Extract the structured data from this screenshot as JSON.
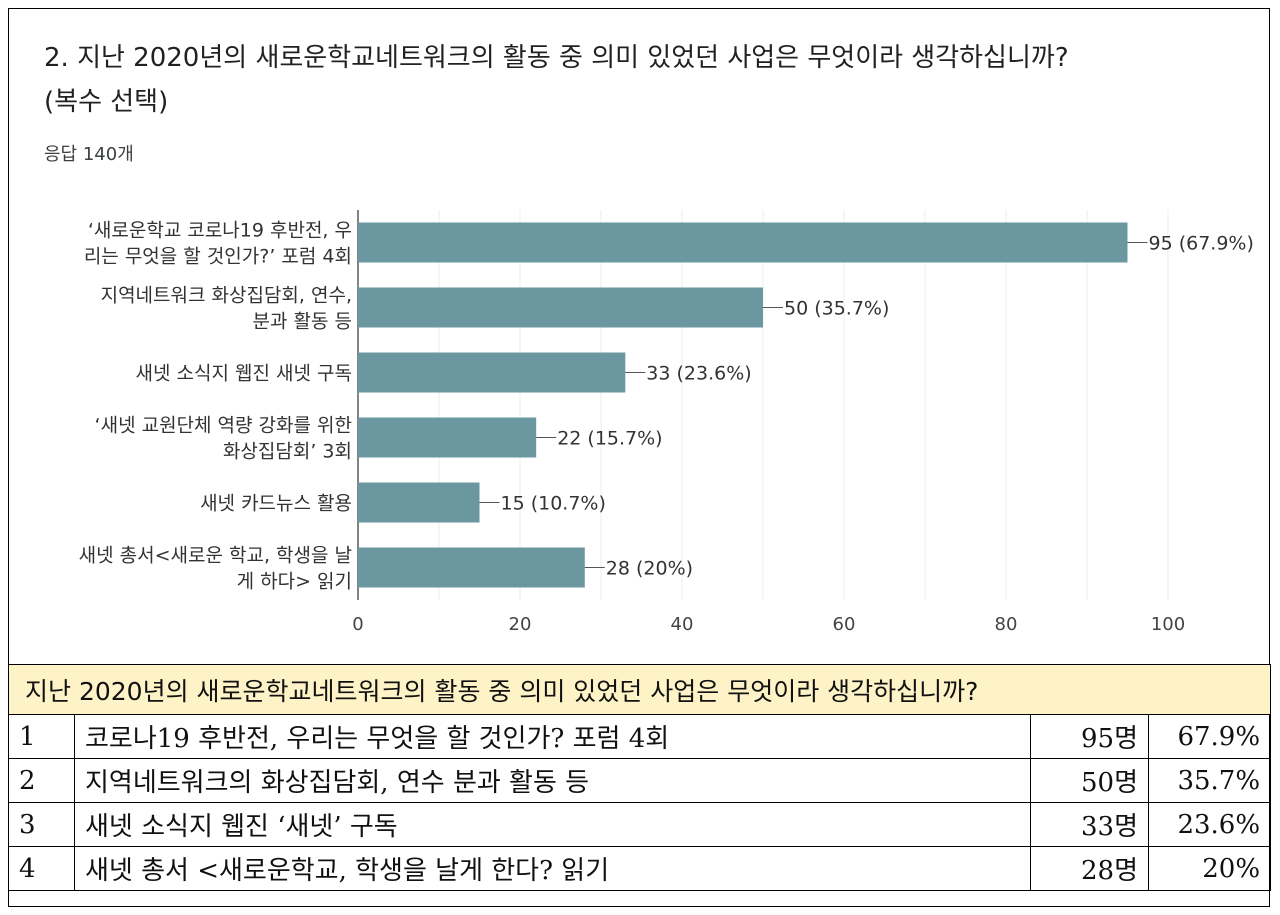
{
  "question": {
    "line1": "2. 지난 2020년의 새로운학교네트워크의 활동 중 의미 있었던 사업은 무엇이라 생각하십니까?",
    "line2": "(복수 선택)",
    "responses": "응답 140개"
  },
  "chart_data": {
    "type": "bar",
    "orientation": "horizontal",
    "categories": [
      [
        "‘새로운학교 코로나19 후반전, 우",
        "리는 무엇을 할 것인가?’ 포럼 4회"
      ],
      [
        "지역네트워크 화상집담회, 연수,",
        "분과 활동 등"
      ],
      [
        "새넷 소식지 웹진 새넷 구독"
      ],
      [
        "‘새넷 교원단체 역량 강화를 위한",
        "화상집담회’ 3회"
      ],
      [
        "새넷 카드뉴스 활용"
      ],
      [
        "새넷 총서<새로운 학교, 학생을 날",
        "게 하다> 읽기"
      ]
    ],
    "values": [
      95,
      50,
      33,
      22,
      15,
      28
    ],
    "data_labels": [
      "95 (67.9%)",
      "50 (35.7%)",
      "33 (23.6%)",
      "22 (15.7%)",
      "15 (10.7%)",
      "28 (20%)"
    ],
    "xlim": [
      0,
      100
    ],
    "xticks": [
      0,
      20,
      40,
      60,
      80,
      100
    ],
    "bar_color": "#6a97a0",
    "grid": true
  },
  "table": {
    "header": "지난 2020년의 새로운학교네트워크의 활동 중 의미 있었던 사업은 무엇이라 생각하십니까?",
    "rows": [
      {
        "no": "1",
        "item": "코로나19 후반전, 우리는 무엇을 할 것인가? 포럼 4회",
        "count": "95명",
        "pct": "67.9%"
      },
      {
        "no": "2",
        "item": "지역네트워크의 화상집담회, 연수 분과 활동 등",
        "count": "50명",
        "pct": "35.7%"
      },
      {
        "no": "3",
        "item": "새넷 소식지 웹진 ‘새넷’ 구독",
        "count": "33명",
        "pct": "23.6%"
      },
      {
        "no": "4",
        "item": "새넷 총서 <새로운학교, 학생을 날게 한다? 읽기",
        "count": "28명",
        "pct": "20%"
      }
    ]
  }
}
